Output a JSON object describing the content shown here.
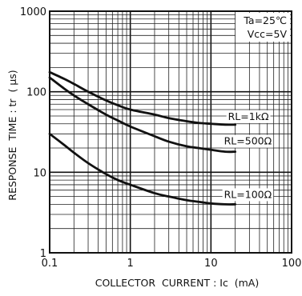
{
  "chart_data": {
    "type": "line",
    "title": "",
    "xlabel": "COLLECTOR  CURRENT : Ic  (mA)",
    "ylabel": "RESPONSE  TIME : tr  ( μs)",
    "xscale": "log",
    "yscale": "log",
    "xlim": [
      0.1,
      100
    ],
    "ylim": [
      1,
      1000
    ],
    "grid": true,
    "x_ticks": [
      "0.1",
      "1",
      "10",
      "100"
    ],
    "y_ticks": [
      "1",
      "10",
      "100",
      "1000"
    ],
    "annotations": [
      "Ta=25℃",
      "Vcc=5V"
    ],
    "series": [
      {
        "name": "RL=1kΩ",
        "x": [
          0.1,
          0.15,
          0.2,
          0.3,
          0.5,
          0.7,
          1,
          2,
          3,
          5,
          7,
          10,
          15,
          20
        ],
        "y": [
          175,
          145,
          125,
          100,
          78,
          68,
          60,
          52,
          47,
          43,
          41,
          40,
          39,
          39
        ]
      },
      {
        "name": "RL=500Ω",
        "x": [
          0.1,
          0.15,
          0.2,
          0.3,
          0.5,
          0.7,
          1,
          2,
          3,
          5,
          7,
          10,
          15,
          20
        ],
        "y": [
          150,
          110,
          90,
          70,
          52,
          44,
          37,
          28,
          24,
          21,
          20,
          19,
          18,
          18
        ]
      },
      {
        "name": "RL=100Ω",
        "x": [
          0.1,
          0.15,
          0.2,
          0.3,
          0.5,
          0.7,
          1,
          2,
          3,
          5,
          7,
          10,
          15,
          20
        ],
        "y": [
          30,
          22,
          17.5,
          13,
          9.5,
          8,
          7,
          5.5,
          5,
          4.5,
          4.3,
          4.1,
          4,
          4
        ]
      }
    ]
  }
}
